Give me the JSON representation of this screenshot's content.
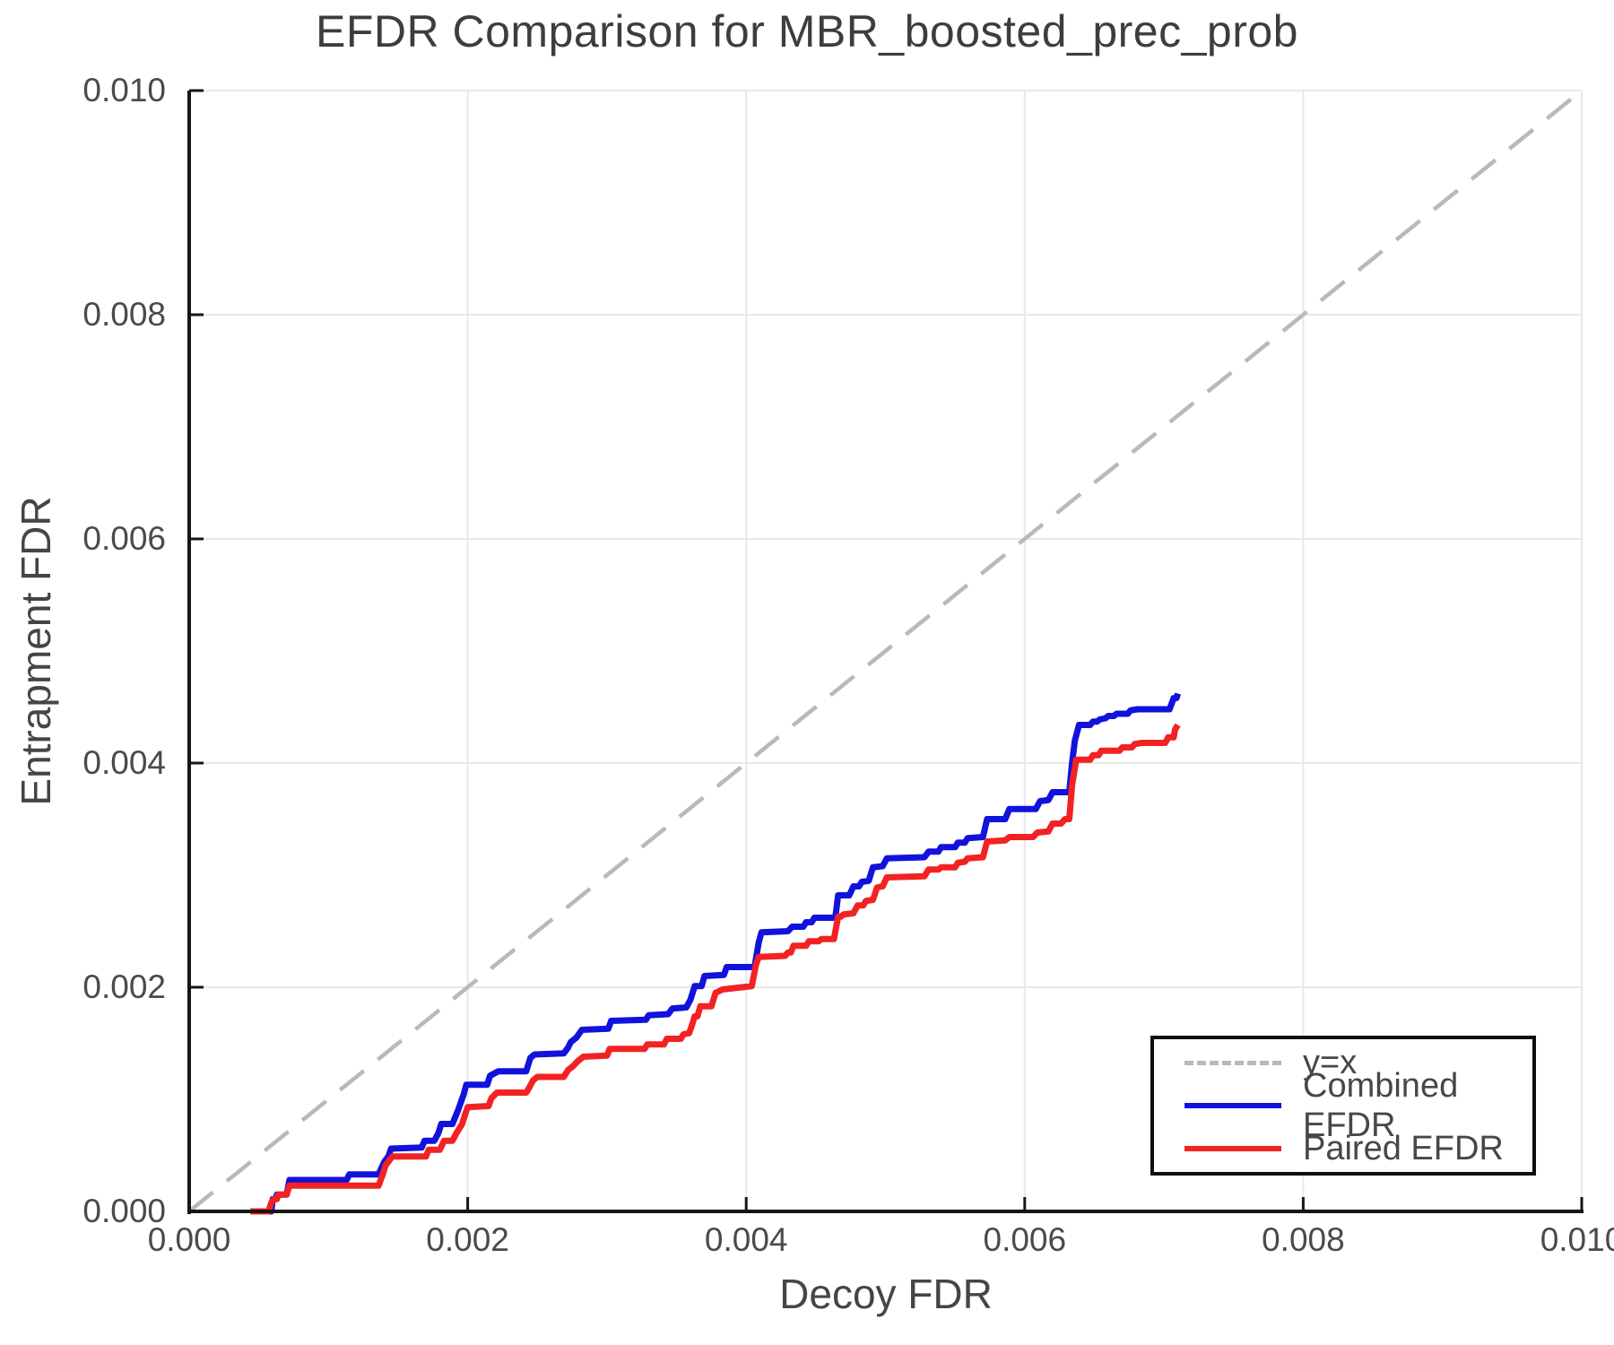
{
  "chart_data": {
    "type": "line",
    "title": "EFDR Comparison for MBR_boosted_prec_prob",
    "xlabel": "Decoy FDR",
    "ylabel": "Entrapment FDR",
    "xlim": [
      0.0,
      0.01
    ],
    "ylim": [
      0.0,
      0.01
    ],
    "grid": true,
    "legend_position": "lower right",
    "x_ticks": {
      "values": [
        0.0,
        0.002,
        0.004,
        0.006,
        0.008,
        0.01
      ],
      "labels": [
        "0.000",
        "0.002",
        "0.004",
        "0.006",
        "0.008",
        "0.010"
      ]
    },
    "y_ticks": {
      "values": [
        0.0,
        0.002,
        0.004,
        0.006,
        0.008,
        0.01
      ],
      "labels": [
        "0.000",
        "0.002",
        "0.004",
        "0.006",
        "0.008",
        "0.010"
      ]
    },
    "series": [
      {
        "name": "y=x",
        "style": "dashed",
        "color": "#b9b9b9",
        "points": [
          [
            0,
            0
          ],
          [
            0.01,
            0.01
          ]
        ]
      },
      {
        "name": "Combined EFDR",
        "style": "solid",
        "color": "#1212dd",
        "points": [
          [
            0.00044,
            0
          ],
          [
            0.00059,
            0
          ],
          [
            0.0006,
            0.00011
          ],
          [
            0.00062,
            0.00011
          ],
          [
            0.00063,
            0.00015
          ],
          [
            0.0007,
            0.00015
          ],
          [
            0.00072,
            0.00028
          ],
          [
            0.00113,
            0.00028
          ],
          [
            0.00115,
            0.00033
          ],
          [
            0.00136,
            0.00033
          ],
          [
            0.0014,
            0.00044
          ],
          [
            0.00143,
            0.00049
          ],
          [
            0.00145,
            0.00056
          ],
          [
            0.00167,
            0.00057
          ],
          [
            0.00169,
            0.00063
          ],
          [
            0.00176,
            0.00063
          ],
          [
            0.00179,
            0.0007
          ],
          [
            0.00181,
            0.00078
          ],
          [
            0.00189,
            0.00078
          ],
          [
            0.00193,
            0.0009
          ],
          [
            0.00197,
            0.00104
          ],
          [
            0.00199,
            0.00113
          ],
          [
            0.00214,
            0.00113
          ],
          [
            0.00216,
            0.00121
          ],
          [
            0.00222,
            0.00125
          ],
          [
            0.00242,
            0.00125
          ],
          [
            0.00245,
            0.00137
          ],
          [
            0.00248,
            0.0014
          ],
          [
            0.00269,
            0.00141
          ],
          [
            0.00272,
            0.00146
          ],
          [
            0.00274,
            0.00151
          ],
          [
            0.00278,
            0.00155
          ],
          [
            0.00282,
            0.00162
          ],
          [
            0.00301,
            0.00163
          ],
          [
            0.00303,
            0.0017
          ],
          [
            0.00328,
            0.00171
          ],
          [
            0.0033,
            0.00175
          ],
          [
            0.00344,
            0.00176
          ],
          [
            0.00347,
            0.00181
          ],
          [
            0.00357,
            0.00182
          ],
          [
            0.0036,
            0.00189
          ],
          [
            0.00363,
            0.00201
          ],
          [
            0.00368,
            0.00201
          ],
          [
            0.0037,
            0.0021
          ],
          [
            0.00384,
            0.00211
          ],
          [
            0.00386,
            0.00218
          ],
          [
            0.00406,
            0.00218
          ],
          [
            0.00409,
            0.0024
          ],
          [
            0.00411,
            0.00249
          ],
          [
            0.0043,
            0.0025
          ],
          [
            0.00433,
            0.00254
          ],
          [
            0.00441,
            0.00254
          ],
          [
            0.00443,
            0.00258
          ],
          [
            0.00447,
            0.00258
          ],
          [
            0.00449,
            0.00262
          ],
          [
            0.00464,
            0.00262
          ],
          [
            0.00466,
            0.00282
          ],
          [
            0.00474,
            0.00282
          ],
          [
            0.00477,
            0.0029
          ],
          [
            0.00481,
            0.0029
          ],
          [
            0.00483,
            0.00294
          ],
          [
            0.00488,
            0.00295
          ],
          [
            0.00491,
            0.00307
          ],
          [
            0.00498,
            0.00308
          ],
          [
            0.00501,
            0.00315
          ],
          [
            0.00528,
            0.00316
          ],
          [
            0.00531,
            0.00321
          ],
          [
            0.00538,
            0.00321
          ],
          [
            0.0054,
            0.00325
          ],
          [
            0.0055,
            0.00325
          ],
          [
            0.00552,
            0.00329
          ],
          [
            0.00557,
            0.00329
          ],
          [
            0.00559,
            0.00333
          ],
          [
            0.0057,
            0.00334
          ],
          [
            0.00573,
            0.0035
          ],
          [
            0.00586,
            0.0035
          ],
          [
            0.00589,
            0.00359
          ],
          [
            0.00608,
            0.00359
          ],
          [
            0.00611,
            0.00366
          ],
          [
            0.00617,
            0.00367
          ],
          [
            0.0062,
            0.00374
          ],
          [
            0.00632,
            0.00374
          ],
          [
            0.00634,
            0.004
          ],
          [
            0.00636,
            0.0042
          ],
          [
            0.00639,
            0.00434
          ],
          [
            0.00647,
            0.00434
          ],
          [
            0.00649,
            0.00437
          ],
          [
            0.00652,
            0.00437
          ],
          [
            0.00654,
            0.00439
          ],
          [
            0.00658,
            0.0044
          ],
          [
            0.0066,
            0.00442
          ],
          [
            0.00664,
            0.00442
          ],
          [
            0.00666,
            0.00444
          ],
          [
            0.00674,
            0.00444
          ],
          [
            0.00676,
            0.00447
          ],
          [
            0.00681,
            0.00448
          ],
          [
            0.00704,
            0.00448
          ],
          [
            0.00707,
            0.00458
          ],
          [
            0.00709,
            0.00458
          ],
          [
            0.0071,
            0.00462
          ]
        ]
      },
      {
        "name": "Paired EFDR",
        "style": "solid",
        "color": "#f32222",
        "points": [
          [
            0.00044,
            0
          ],
          [
            0.00057,
            0
          ],
          [
            0.00059,
            8e-05
          ],
          [
            0.00061,
            0.00011
          ],
          [
            0.00063,
            0.00011
          ],
          [
            0.00064,
            0.00015
          ],
          [
            0.0007,
            0.00015
          ],
          [
            0.00072,
            0.00023
          ],
          [
            0.00136,
            0.00023
          ],
          [
            0.00139,
            0.00033
          ],
          [
            0.00141,
            0.00041
          ],
          [
            0.00144,
            0.00046
          ],
          [
            0.00146,
            0.00049
          ],
          [
            0.0017,
            0.00049
          ],
          [
            0.00172,
            0.00055
          ],
          [
            0.0018,
            0.00055
          ],
          [
            0.00183,
            0.00063
          ],
          [
            0.00189,
            0.00063
          ],
          [
            0.00192,
            0.0007
          ],
          [
            0.00196,
            0.00078
          ],
          [
            0.00198,
            0.00086
          ],
          [
            0.002,
            0.00093
          ],
          [
            0.00215,
            0.00094
          ],
          [
            0.00217,
            0.00101
          ],
          [
            0.00221,
            0.00106
          ],
          [
            0.00242,
            0.00106
          ],
          [
            0.00244,
            0.0011
          ],
          [
            0.00247,
            0.00117
          ],
          [
            0.0025,
            0.0012
          ],
          [
            0.00269,
            0.0012
          ],
          [
            0.00272,
            0.00126
          ],
          [
            0.00276,
            0.0013
          ],
          [
            0.00279,
            0.00134
          ],
          [
            0.00283,
            0.00138
          ],
          [
            0.003,
            0.00139
          ],
          [
            0.00302,
            0.00145
          ],
          [
            0.00327,
            0.00145
          ],
          [
            0.00329,
            0.00149
          ],
          [
            0.00341,
            0.00149
          ],
          [
            0.00343,
            0.00154
          ],
          [
            0.00353,
            0.00154
          ],
          [
            0.00355,
            0.00158
          ],
          [
            0.00359,
            0.00159
          ],
          [
            0.00361,
            0.00166
          ],
          [
            0.00363,
            0.00174
          ],
          [
            0.00365,
            0.00174
          ],
          [
            0.00367,
            0.00183
          ],
          [
            0.00375,
            0.00183
          ],
          [
            0.00378,
            0.00195
          ],
          [
            0.00383,
            0.00198
          ],
          [
            0.00404,
            0.00201
          ],
          [
            0.00407,
            0.0022
          ],
          [
            0.00409,
            0.00227
          ],
          [
            0.00428,
            0.00228
          ],
          [
            0.0043,
            0.00231
          ],
          [
            0.00432,
            0.00231
          ],
          [
            0.00434,
            0.00237
          ],
          [
            0.00443,
            0.00237
          ],
          [
            0.00445,
            0.00241
          ],
          [
            0.00452,
            0.00241
          ],
          [
            0.00454,
            0.00243
          ],
          [
            0.00463,
            0.00243
          ],
          [
            0.00466,
            0.00263
          ],
          [
            0.00468,
            0.00263
          ],
          [
            0.0047,
            0.00265
          ],
          [
            0.00477,
            0.00266
          ],
          [
            0.0048,
            0.00273
          ],
          [
            0.00484,
            0.00273
          ],
          [
            0.00486,
            0.00277
          ],
          [
            0.00491,
            0.00278
          ],
          [
            0.00494,
            0.00289
          ],
          [
            0.00498,
            0.0029
          ],
          [
            0.00501,
            0.00298
          ],
          [
            0.00528,
            0.00299
          ],
          [
            0.00531,
            0.00305
          ],
          [
            0.00538,
            0.00305
          ],
          [
            0.0054,
            0.00307
          ],
          [
            0.0055,
            0.00307
          ],
          [
            0.00552,
            0.00311
          ],
          [
            0.00557,
            0.00312
          ],
          [
            0.00559,
            0.00315
          ],
          [
            0.0057,
            0.00316
          ],
          [
            0.00573,
            0.0033
          ],
          [
            0.00586,
            0.00331
          ],
          [
            0.00589,
            0.00334
          ],
          [
            0.00606,
            0.00334
          ],
          [
            0.00609,
            0.00338
          ],
          [
            0.00617,
            0.00339
          ],
          [
            0.0062,
            0.00346
          ],
          [
            0.00626,
            0.00346
          ],
          [
            0.00629,
            0.0035
          ],
          [
            0.00632,
            0.0035
          ],
          [
            0.00634,
            0.0038
          ],
          [
            0.00637,
            0.00403
          ],
          [
            0.00647,
            0.00403
          ],
          [
            0.00649,
            0.00407
          ],
          [
            0.00653,
            0.00407
          ],
          [
            0.00655,
            0.00411
          ],
          [
            0.00668,
            0.00411
          ],
          [
            0.0067,
            0.00414
          ],
          [
            0.00677,
            0.00414
          ],
          [
            0.00679,
            0.00417
          ],
          [
            0.00684,
            0.00418
          ],
          [
            0.00701,
            0.00418
          ],
          [
            0.00703,
            0.00423
          ],
          [
            0.00707,
            0.00423
          ],
          [
            0.00708,
            0.0043
          ],
          [
            0.0071,
            0.00434
          ]
        ]
      }
    ]
  }
}
